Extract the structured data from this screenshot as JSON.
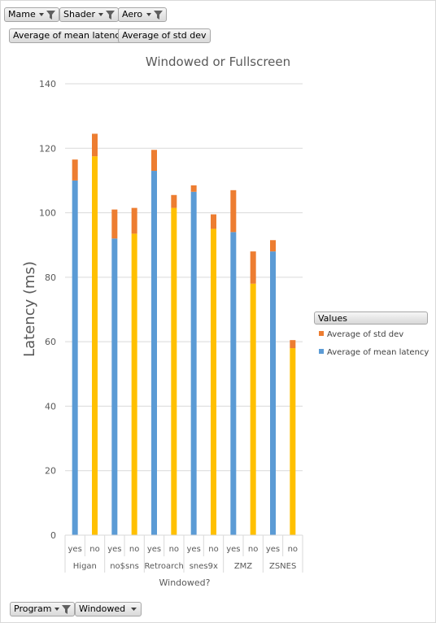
{
  "filters": {
    "top": [
      {
        "label": "Mame"
      },
      {
        "label": "Shader"
      },
      {
        "label": "Aero"
      }
    ],
    "values": [
      {
        "label": "Average of mean latency"
      },
      {
        "label": "Average of std dev"
      }
    ],
    "bottom": [
      {
        "label": "Program"
      },
      {
        "label": "Windowed"
      }
    ]
  },
  "legend": {
    "header": "Values",
    "items": [
      {
        "label": "Average of std dev",
        "color": "#ed7d31"
      },
      {
        "label": "Average of mean latency",
        "color": "#5b9bd5"
      }
    ]
  },
  "colors": {
    "yes_bar": "#5b9bd5",
    "no_bar": "#ffc000",
    "stack_top": "#ed7d31"
  },
  "chart_data": {
    "type": "bar",
    "stacked": true,
    "title": "Windowed or Fullscreen",
    "xlabel": "Windowed?",
    "ylabel": "Latency (ms)",
    "ylim": [
      0,
      140
    ],
    "yticks": [
      0,
      20,
      40,
      60,
      80,
      100,
      120,
      140
    ],
    "grid": true,
    "legend_position": "right",
    "groups": [
      "Higan",
      "no$sns",
      "Retroarch",
      "snes9x",
      "ZMZ",
      "ZSNES"
    ],
    "categories": [
      "yes",
      "no",
      "yes",
      "no",
      "yes",
      "no",
      "yes",
      "no",
      "yes",
      "no",
      "yes",
      "no"
    ],
    "series": [
      {
        "name": "Average of mean latency",
        "values": [
          110,
          117.5,
          92,
          93.5,
          113,
          101.5,
          106.5,
          95,
          94,
          78,
          88,
          58
        ]
      },
      {
        "name": "Average of std dev",
        "values": [
          6.5,
          7,
          9,
          8,
          6.5,
          4,
          2,
          4.5,
          13,
          10,
          3.5,
          2.5
        ]
      }
    ]
  }
}
